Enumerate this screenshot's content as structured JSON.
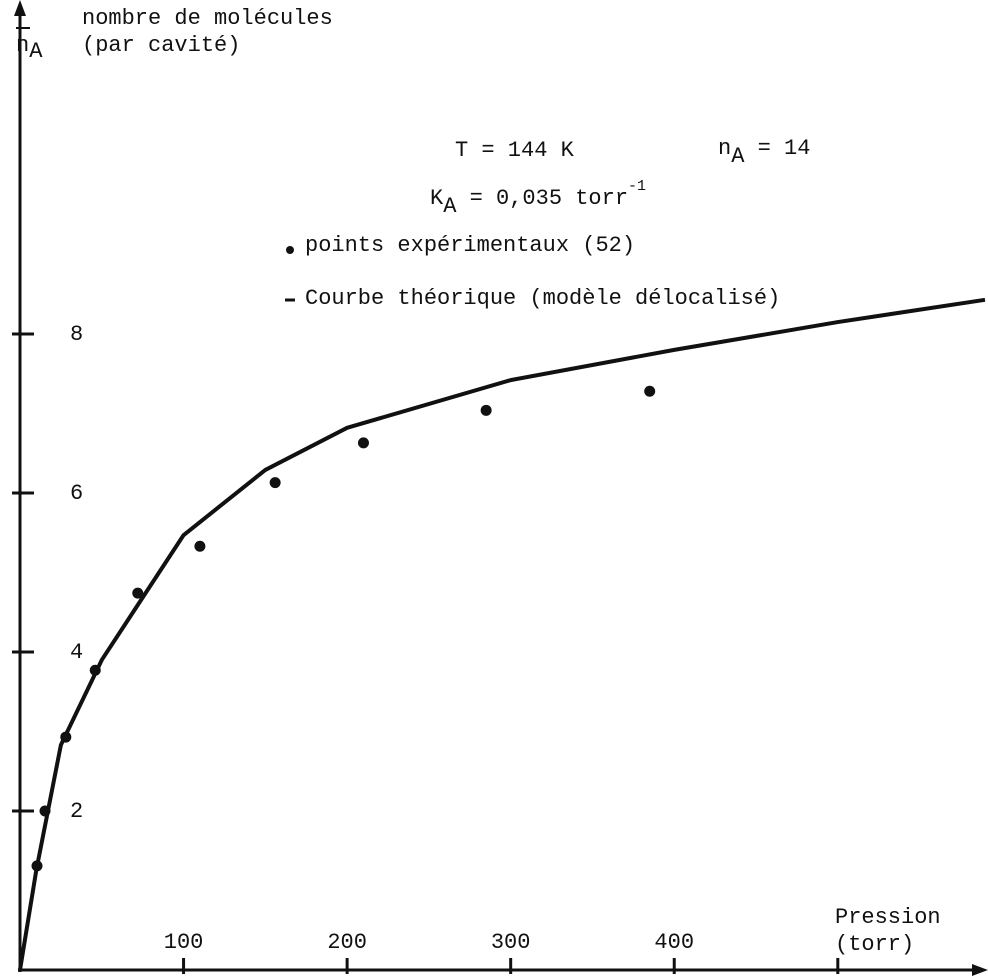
{
  "chart_data": {
    "type": "scatter",
    "y_label": {
      "main": "n",
      "sub": "A",
      "text": "nombre de molécules",
      "text2": "(par cavité)"
    },
    "x_label": {
      "text": "Pression",
      "text2": "(torr)"
    },
    "annotations": {
      "temperature": "T = 144 K",
      "n_a": {
        "main": "n",
        "sub": "A",
        "rest": " = 14"
      },
      "k_a": {
        "main": "K",
        "sub": "A",
        "rest": " = 0,035 torr",
        "sup": "-1"
      }
    },
    "xlim": [
      0,
      590
    ],
    "ylim": [
      0,
      12
    ],
    "xticks": [
      100,
      200,
      300,
      400,
      500
    ],
    "xtick_labels": [
      "100",
      "200",
      "300",
      "400",
      null
    ],
    "yticks": [
      2,
      4,
      6,
      8
    ],
    "series": [
      {
        "name": "points expérimentaux (52)",
        "marker": "dot",
        "color": "#111111",
        "x": [
          10.4,
          15.3,
          28,
          46,
          72,
          110,
          156,
          210,
          285,
          385
        ],
        "values": [
          1.31,
          2.0,
          2.93,
          3.77,
          4.74,
          5.33,
          6.13,
          6.63,
          7.04,
          7.28
        ]
      },
      {
        "name": "Courbe théorique (modèle délocalisé)",
        "marker": "line",
        "color": "#111111",
        "x": [
          0,
          10,
          25,
          50,
          100,
          150,
          200,
          300,
          400,
          500,
          590
        ],
        "values": [
          0,
          1.26,
          2.83,
          3.9,
          5.47,
          6.29,
          6.82,
          7.42,
          7.8,
          8.15,
          8.43
        ]
      }
    ]
  }
}
